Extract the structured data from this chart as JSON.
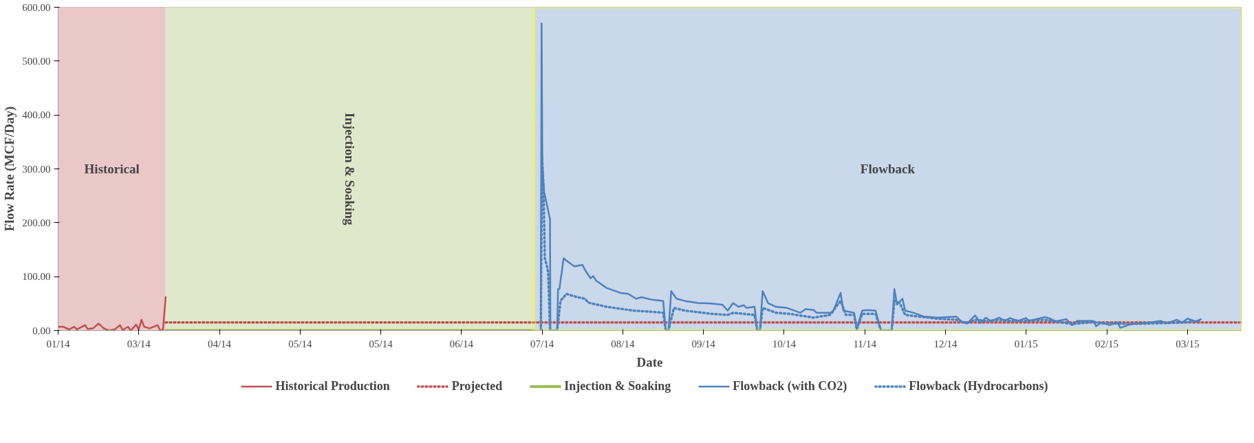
{
  "chart_data": {
    "type": "line",
    "xlabel": "Date",
    "ylabel": "Flow Rate (MCF/Day)",
    "xlim": [
      "2014-01-31",
      "2015-04-16"
    ],
    "xticks": [
      {
        "value": "2014-01-31",
        "label": "01/14"
      },
      {
        "value": "2014-03-02",
        "label": "03/14"
      },
      {
        "value": "2014-04-01",
        "label": "04/14"
      },
      {
        "value": "2014-05-01",
        "label": "05/14"
      },
      {
        "value": "2014-05-31",
        "label": "05/14"
      },
      {
        "value": "2014-06-30",
        "label": "06/14"
      },
      {
        "value": "2014-07-30",
        "label": "07/14"
      },
      {
        "value": "2014-08-29",
        "label": "08/14"
      },
      {
        "value": "2014-09-28",
        "label": "09/14"
      },
      {
        "value": "2014-10-28",
        "label": "10/14"
      },
      {
        "value": "2014-11-27",
        "label": "11/14"
      },
      {
        "value": "2014-12-27",
        "label": "12/14"
      },
      {
        "value": "2015-01-26",
        "label": "01/15"
      },
      {
        "value": "2015-02-25",
        "label": "02/15"
      },
      {
        "value": "2015-03-27",
        "label": "03/15"
      }
    ],
    "ylim": [
      0,
      600
    ],
    "yticks": [
      {
        "value": 0,
        "label": "0.00"
      },
      {
        "value": 100,
        "label": "100.00"
      },
      {
        "value": 200,
        "label": "200.00"
      },
      {
        "value": 300,
        "label": "300.00"
      },
      {
        "value": 400,
        "label": "400.00"
      },
      {
        "value": 500,
        "label": "500.00"
      },
      {
        "value": 600,
        "label": "600.00"
      }
    ],
    "grid": true,
    "legend": "bottom",
    "bands": [
      {
        "axis": "x",
        "from": "2014-01-31",
        "to": "2014-03-12",
        "label": "Historical",
        "color": "#ebc8c8"
      },
      {
        "axis": "x",
        "from": "2014-03-12",
        "to": "2014-07-27",
        "label": "Injection & Soaking",
        "color": "#e0e8cb"
      },
      {
        "axis": "x",
        "from": "2014-07-27",
        "to": "2015-04-16",
        "label": "Flowback",
        "color": "#c9d8ea"
      }
    ],
    "series": [
      {
        "name": "Historical Production",
        "color": "#c0504d",
        "line_style": "solid",
        "x": [
          "2014-01-31",
          "2014-02-02",
          "2014-02-04",
          "2014-02-06",
          "2014-02-07",
          "2014-02-10",
          "2014-02-11",
          "2014-02-13",
          "2014-02-15",
          "2014-02-17",
          "2014-02-19",
          "2014-02-21",
          "2014-02-23",
          "2014-02-24",
          "2014-02-26",
          "2014-02-27",
          "2014-03-01",
          "2014-03-02",
          "2014-03-03",
          "2014-03-04",
          "2014-03-06",
          "2014-03-09",
          "2014-03-10",
          "2014-03-11",
          "2014-03-12"
        ],
        "values": [
          7,
          7,
          2,
          7,
          2,
          10,
          3,
          4,
          13,
          4,
          0,
          2,
          10,
          1,
          7,
          0,
          11,
          2,
          20,
          7,
          4,
          10,
          0,
          2,
          62
        ]
      },
      {
        "name": "Projected",
        "color": "#c0504d",
        "line_style": "dotted",
        "x": [
          "2014-03-12",
          "2015-04-16"
        ],
        "values": [
          15,
          15
        ]
      },
      {
        "name": "Injection & Soaking",
        "color": "#9bbb59",
        "line_style": "solid",
        "x": [
          "2014-03-12",
          "2014-07-27"
        ],
        "values": [
          0,
          0
        ]
      },
      {
        "name": "Flowback (with CO2)",
        "color": "#4f81bd",
        "line_style": "solid",
        "x": [
          "2014-07-29T12:00",
          "2014-07-29T19:00",
          "2014-07-30T02:00",
          "2014-07-30T17:00",
          "2014-08-01T22:00",
          "2014-08-02T02:00",
          "2014-08-04T14:00",
          "2014-08-04T22:00",
          "2014-08-05T10:00",
          "2014-08-07",
          "2014-08-08",
          "2014-08-11",
          "2014-08-14",
          "2014-08-15",
          "2014-08-17",
          "2014-08-18",
          "2014-08-19",
          "2014-08-23",
          "2014-08-28",
          "2014-08-31",
          "2014-09-03",
          "2014-09-05",
          "2014-09-09",
          "2014-09-13",
          "2014-09-14",
          "2014-09-15",
          "2014-09-16",
          "2014-09-18",
          "2014-09-21",
          "2014-09-26",
          "2014-10-01",
          "2014-10-05",
          "2014-10-07",
          "2014-10-09",
          "2014-10-11",
          "2014-10-13",
          "2014-10-14",
          "2014-10-17",
          "2014-10-18",
          "2014-10-19",
          "2014-10-20",
          "2014-10-22",
          "2014-10-25",
          "2014-10-29",
          "2014-11-03",
          "2014-11-05",
          "2014-11-08",
          "2014-11-09",
          "2014-11-15",
          "2014-11-18",
          "2014-11-19",
          "2014-11-23",
          "2014-11-24",
          "2014-11-26",
          "2014-11-28",
          "2014-12-01",
          "2014-12-03",
          "2014-12-07",
          "2014-12-08",
          "2014-12-09",
          "2014-12-11",
          "2014-12-12",
          "2014-12-15",
          "2014-12-19",
          "2014-12-24",
          "2014-12-31",
          "2015-01-02",
          "2015-01-04",
          "2015-01-07",
          "2015-01-09",
          "2015-01-11",
          "2015-01-13",
          "2015-01-16",
          "2015-01-18",
          "2015-01-20",
          "2015-01-23",
          "2015-01-26",
          "2015-01-27",
          "2015-02-02",
          "2015-02-04",
          "2015-02-06",
          "2015-02-10",
          "2015-02-12",
          "2015-02-14",
          "2015-02-20",
          "2015-02-21",
          "2015-02-23",
          "2015-02-26",
          "2015-03-01",
          "2015-03-02",
          "2015-03-06",
          "2015-03-12",
          "2015-03-17",
          "2015-03-19",
          "2015-03-23",
          "2015-03-25",
          "2015-03-27",
          "2015-03-30",
          "2015-04-01"
        ],
        "values": [
          0,
          570,
          310,
          258,
          207,
          0,
          0,
          77,
          77,
          134,
          130,
          119,
          122,
          112,
          97,
          101,
          93,
          79,
          70,
          68,
          59,
          62,
          57,
          55,
          0,
          0,
          73,
          59,
          55,
          51,
          50,
          48,
          37,
          51,
          44,
          47,
          42,
          44,
          0,
          0,
          73,
          51,
          44,
          42,
          33,
          40,
          38,
          33,
          33,
          70,
          37,
          33,
          2,
          37,
          38,
          37,
          0,
          0,
          77,
          48,
          59,
          37,
          33,
          26,
          24,
          26,
          16,
          13,
          28,
          14,
          24,
          17,
          24,
          18,
          23,
          18,
          23,
          18,
          25,
          22,
          17,
          21,
          10,
          18,
          18,
          8,
          15,
          10,
          15,
          5,
          12,
          14,
          18,
          13,
          20,
          15,
          22,
          17,
          21
        ]
      },
      {
        "name": "Flowback (Hydrocarbons)",
        "color": "#4f81bd",
        "line_style": "dotted",
        "x": [
          "2014-07-29T12:00",
          "2014-07-29T23:00",
          "2014-07-30T12:00",
          "2014-07-31T00:00",
          "2014-07-31T17:00",
          "2014-08-01T06:00",
          "2014-08-01T22:00",
          "2014-08-04T14:00",
          "2014-08-05T20:00",
          "2014-08-08",
          "2014-08-12",
          "2014-08-15",
          "2014-08-16",
          "2014-08-23",
          "2014-09-02",
          "2014-09-11",
          "2014-09-13",
          "2014-09-14",
          "2014-09-15",
          "2014-09-17",
          "2014-09-21",
          "2014-10-01",
          "2014-10-07",
          "2014-10-09",
          "2014-10-17",
          "2014-10-18",
          "2014-10-19",
          "2014-10-20",
          "2014-10-25",
          "2014-10-30",
          "2014-11-08",
          "2014-11-14",
          "2014-11-18",
          "2014-11-20",
          "2014-11-23",
          "2014-11-24",
          "2014-11-26",
          "2014-12-01",
          "2014-12-03",
          "2014-12-07",
          "2014-12-08",
          "2014-12-10",
          "2014-12-12",
          "2014-12-17",
          "2014-12-24",
          "2014-12-31",
          "2015-01-04",
          "2015-01-07",
          "2015-01-11",
          "2015-01-16",
          "2015-01-20",
          "2015-01-26",
          "2015-02-02",
          "2015-02-06",
          "2015-02-12",
          "2015-02-20",
          "2015-02-23",
          "2015-03-01",
          "2015-03-06",
          "2015-03-12",
          "2015-03-19",
          "2015-03-25",
          "2015-04-01"
        ],
        "values": [
          0,
          324,
          266,
          134,
          121,
          108,
          0,
          0,
          55,
          68,
          62,
          59,
          52,
          44,
          37,
          34,
          33,
          0,
          0,
          42,
          37,
          31,
          29,
          33,
          29,
          0,
          0,
          42,
          33,
          31,
          24,
          29,
          55,
          29,
          29,
          2,
          31,
          31,
          0,
          0,
          55,
          51,
          29,
          26,
          22,
          20,
          14,
          20,
          18,
          20,
          18,
          18,
          20,
          17,
          12,
          16,
          13,
          13,
          12,
          13,
          14,
          15,
          18
        ]
      }
    ]
  }
}
